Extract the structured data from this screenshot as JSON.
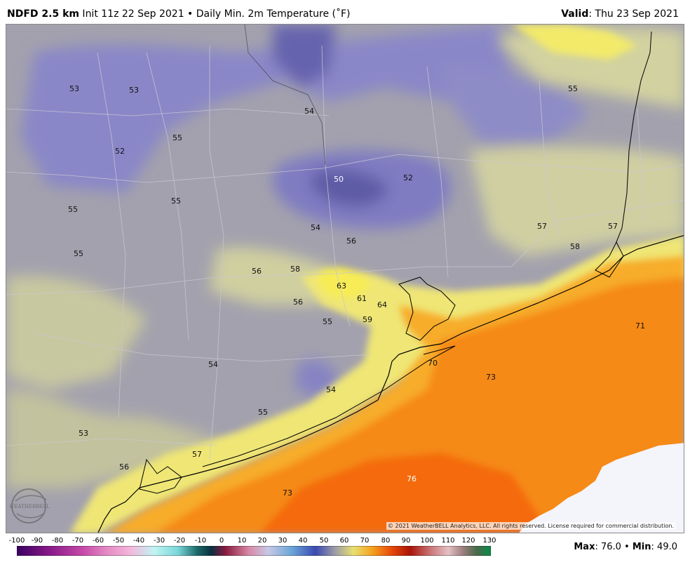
{
  "header": {
    "title_bold": "NDFD 2.5 km",
    "title_rest": " Init 11z 22 Sep 2021 • Daily Min. 2m Temperature (˚F)",
    "valid_label": "Valid",
    "valid_value": ": Thu 23 Sep 2021"
  },
  "map": {
    "temperature_labels": [
      "53",
      "53",
      "55",
      "52",
      "55",
      "55",
      "54",
      "50",
      "52",
      "55",
      "55",
      "54",
      "56",
      "56",
      "58",
      "63",
      "61",
      "64",
      "56",
      "55",
      "59",
      "57",
      "57",
      "58",
      "71",
      "54",
      "70",
      "73",
      "54",
      "55",
      "53",
      "57",
      "56",
      "73",
      "76"
    ],
    "copyright": "© 2021 WeatherBELL Analytics, LLC. All rights reserved. License required for commercial distribution.",
    "logo_text": "WEATHERBELL"
  },
  "colorbar": {
    "ticks": [
      "-100",
      "-90",
      "-80",
      "-70",
      "-60",
      "-50",
      "-40",
      "-30",
      "-20",
      "-10",
      "0",
      "10",
      "20",
      "30",
      "40",
      "50",
      "60",
      "70",
      "80",
      "90",
      "100",
      "110",
      "120",
      "130"
    ]
  },
  "stats": {
    "max_label": "Max",
    "max_value": ": 76.0 • ",
    "min_label": "Min",
    "min_value": ": 49.0"
  },
  "colors": {
    "cool_purple": "#7a78c2",
    "gray": "#9c9aa6",
    "pale_yellow": "#d6d6a0",
    "yellow": "#f5e860",
    "orange": "#f5a21e",
    "deep_orange": "#f46a0a",
    "coast_line": "#000000",
    "no_data": "#f4f4fb"
  }
}
